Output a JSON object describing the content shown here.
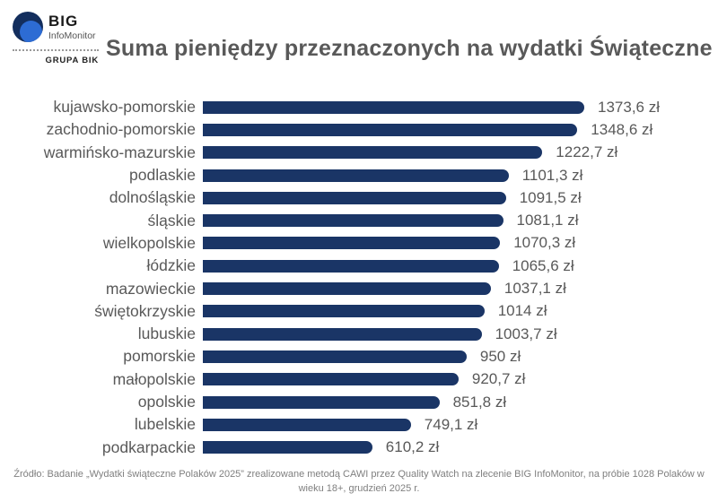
{
  "logo": {
    "brand": "BIG",
    "brand_sub": "InfoMonitor",
    "group_label": "GRUPA BIK",
    "colors": {
      "circle_dark": "#132e5d",
      "circle_light": "#2d6cd4"
    }
  },
  "title": "Suma pieniędzy przeznaczonych na wydatki Świąteczne",
  "footer": "Źródło: Badanie „Wydatki świąteczne Polaków 2025” zrealizowane metodą CAWI przez Quality Watch na zlecenie BIG InfoMonitor, na próbie 1028 Polaków w wieku 18+, grudzień 2025 r.",
  "colors": {
    "bar": "#1a3566",
    "text": "#595959",
    "footer_text": "#7f7f7f"
  },
  "chart_data": {
    "type": "bar",
    "orientation": "horizontal",
    "title": "Suma pieniędzy przeznaczonych na wydatki Świąteczne",
    "unit": "zł",
    "xlim": [
      0,
      1400
    ],
    "grid": false,
    "legend": false,
    "sort": "descending",
    "categories": [
      "kujawsko-pomorskie",
      "zachodnio-pomorskie",
      "warmińsko-mazurskie",
      "podlaskie",
      "dolnośląskie",
      "śląskie",
      "wielkopolskie",
      "łódzkie",
      "mazowieckie",
      "świętokrzyskie",
      "lubuskie",
      "pomorskie",
      "małopolskie",
      "opolskie",
      "lubelskie",
      "podkarpackie"
    ],
    "values": [
      1373.6,
      1348.6,
      1222.7,
      1101.3,
      1091.5,
      1081.1,
      1070.3,
      1065.6,
      1037.1,
      1014,
      1003.7,
      950,
      920.7,
      851.8,
      749.1,
      610.2
    ],
    "value_labels": [
      "1373,6 zł",
      "1348,6 zł",
      "1222,7 zł",
      "1101,3 zł",
      "1091,5 zł",
      "1081,1 zł",
      "1070,3 zł",
      "1065,6 zł",
      "1037,1 zł",
      "1014 zł",
      "1003,7 zł",
      "950 zł",
      "920,7 zł",
      "851,8 zł",
      "749,1 zł",
      "610,2 zł"
    ]
  }
}
